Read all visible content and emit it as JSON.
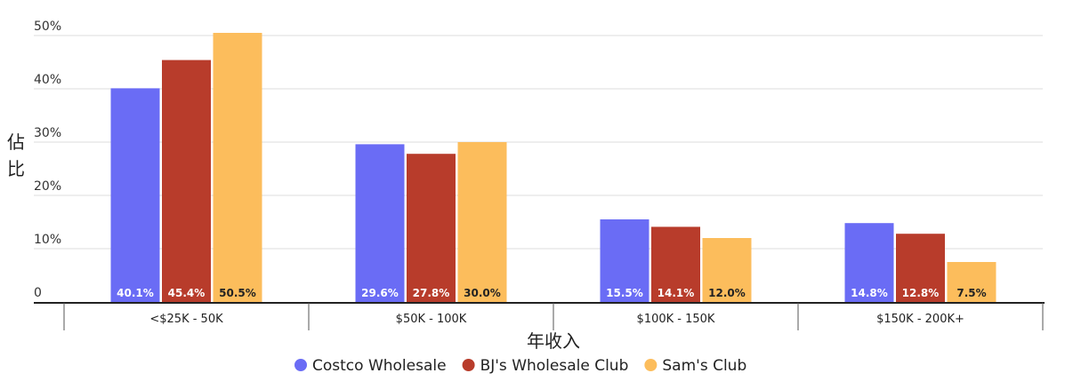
{
  "chart_data": {
    "type": "bar",
    "categories": [
      "<$25K - 50K",
      "$50K - 100K",
      "$100K - 150K",
      "$150K - 200K+"
    ],
    "series": [
      {
        "name": "Costco Wholesale",
        "color": "#6a6cf5",
        "label_color": "#ffffff",
        "values": [
          40.1,
          29.6,
          15.5,
          14.8
        ],
        "labels": [
          "40.1%",
          "29.6%",
          "15.5%",
          "14.8%"
        ]
      },
      {
        "name": "BJ's Wholesale Club",
        "color": "#b83c2b",
        "label_color": "#ffffff",
        "values": [
          45.4,
          27.8,
          14.1,
          12.8
        ],
        "labels": [
          "45.4%",
          "27.8%",
          "14.1%",
          "12.8%"
        ]
      },
      {
        "name": "Sam's Club",
        "color": "#fcbd5c",
        "label_color": "#222222",
        "values": [
          50.5,
          30.0,
          12.0,
          7.5
        ],
        "labels": [
          "50.5%",
          "30.0%",
          "12.0%",
          "7.5%"
        ]
      }
    ],
    "y_ticks": [
      0,
      10,
      20,
      30,
      40,
      50
    ],
    "y_tick_labels": [
      "0",
      "10%",
      "20%",
      "30%",
      "40%",
      "50%"
    ],
    "ylim": [
      0,
      50
    ],
    "xlabel": "年收入",
    "ylabel": "佔比",
    "grid": true,
    "legend_position": "bottom-center"
  }
}
